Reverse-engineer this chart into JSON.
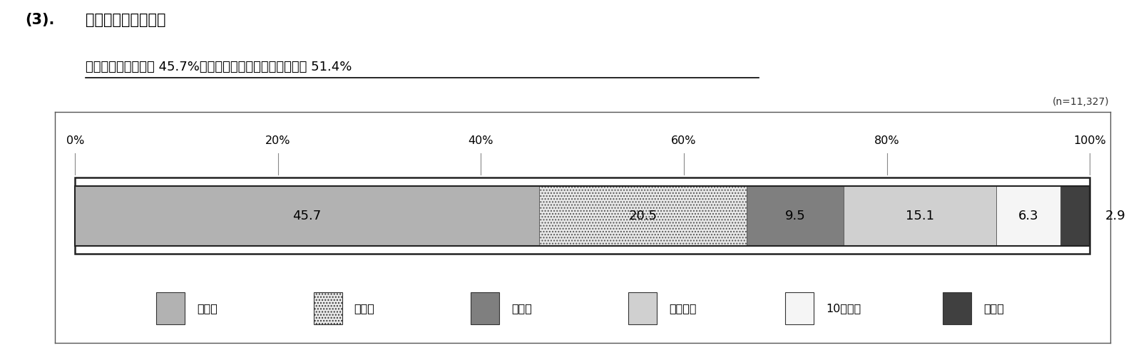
{
  "title_number": "(3).",
  "title_main": "これまでの訪都回数",
  "subtitle": "１回目（初めて）が 45.7%、２回目以上（リピーター）が 51.4%",
  "sample_size": "(n=11,327)",
  "segments": [
    {
      "label": "１回目",
      "value": 45.7,
      "color": "#b2b2b2",
      "hatch": null,
      "text_color": "#000000"
    },
    {
      "label": "２回目",
      "value": 20.5,
      "color": "#e8e8e8",
      "hatch": "....",
      "text_color": "#000000"
    },
    {
      "label": "３回目",
      "value": 9.5,
      "color": "#7f7f7f",
      "hatch": null,
      "text_color": "#000000"
    },
    {
      "label": "４〜９回",
      "value": 15.1,
      "color": "#d0d0d0",
      "hatch": null,
      "text_color": "#000000"
    },
    {
      "label": "10回以上",
      "value": 6.3,
      "color": "#f5f5f5",
      "hatch": null,
      "text_color": "#000000"
    },
    {
      "label": "無回答",
      "value": 2.9,
      "color": "#404040",
      "hatch": null,
      "text_color": "#000000"
    }
  ],
  "bg_color": "#ffffff",
  "tick_positions": [
    0,
    20,
    40,
    60,
    80,
    100
  ],
  "tick_labels": [
    "0%",
    "20%",
    "40%",
    "60%",
    "80%",
    "100%"
  ]
}
